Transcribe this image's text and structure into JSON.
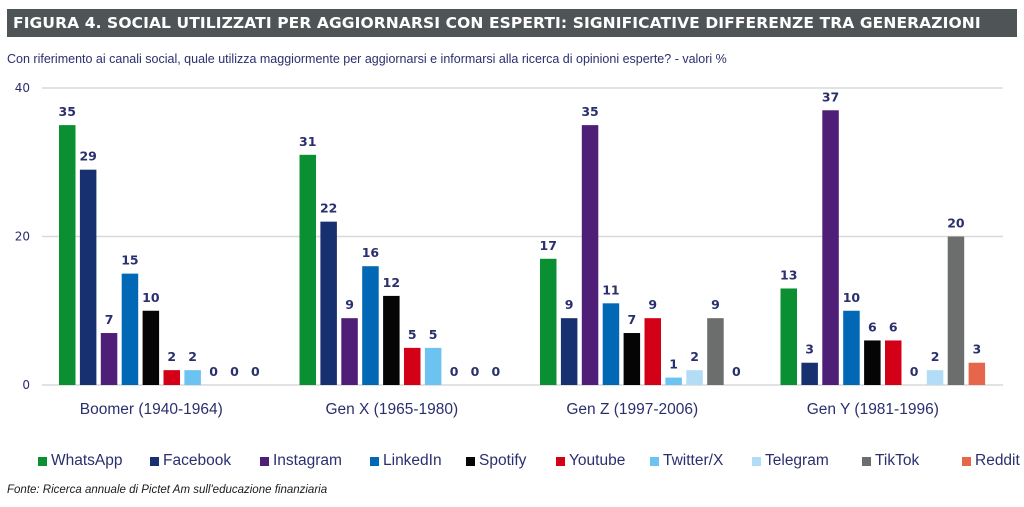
{
  "header": {
    "title": "FIGURA 4. SOCIAL UTILIZZATI PER AGGIORNARSI CON ESPERTI: SIGNIFICATIVE DIFFERENZE TRA GENERAZIONI",
    "subtitle": "Con riferimento ai canali social, quale utilizza maggiormente per aggiornarsi e informarsi alla ricerca di opinioni esperte? - valori %"
  },
  "footer": {
    "source": "Fonte: Ricerca annuale di Pictet Am sull'educazione finanziaria"
  },
  "chart_data": {
    "type": "bar",
    "title": "FIGURA 4. SOCIAL UTILIZZATI PER AGGIORNARSI CON ESPERTI: SIGNIFICATIVE DIFFERENZE TRA GENERAZIONI",
    "subtitle": "Con riferimento ai canali social, quale utilizza maggiormente per aggiornarsi e informarsi alla ricerca di opinioni esperte? - valori %",
    "xlabel": "",
    "ylabel": "",
    "ylim": [
      0,
      40
    ],
    "yticks": [
      0,
      20,
      40
    ],
    "grid": true,
    "legend_position": "bottom",
    "categories": [
      "Boomer (1940-1964)",
      "Gen X (1965-1980)",
      "Gen Z (1997-2006)",
      "Gen Y (1981-1996)"
    ],
    "series": [
      {
        "name": "WhatsApp",
        "color": "#0a8f32",
        "values": [
          35,
          31,
          17,
          13
        ]
      },
      {
        "name": "Facebook",
        "color": "#17306f",
        "values": [
          29,
          22,
          9,
          3
        ]
      },
      {
        "name": "Instagram",
        "color": "#4f1f78",
        "values": [
          7,
          9,
          35,
          37
        ]
      },
      {
        "name": "LinkedIn",
        "color": "#0068b5",
        "values": [
          15,
          16,
          11,
          10
        ]
      },
      {
        "name": "Spotify",
        "color": "#050505",
        "values": [
          10,
          12,
          7,
          6
        ]
      },
      {
        "name": "Youtube",
        "color": "#d40018",
        "values": [
          2,
          5,
          9,
          6
        ]
      },
      {
        "name": "Twitter/X",
        "color": "#6cc2f0",
        "values": [
          2,
          5,
          1,
          0
        ]
      },
      {
        "name": "Telegram",
        "color": "#b3dcf7",
        "values": [
          0,
          0,
          2,
          2
        ]
      },
      {
        "name": "TikTok",
        "color": "#6c6e6d",
        "values": [
          0,
          0,
          9,
          20
        ]
      },
      {
        "name": "Reddit",
        "color": "#e5664a",
        "values": [
          0,
          0,
          0,
          3
        ]
      }
    ]
  }
}
